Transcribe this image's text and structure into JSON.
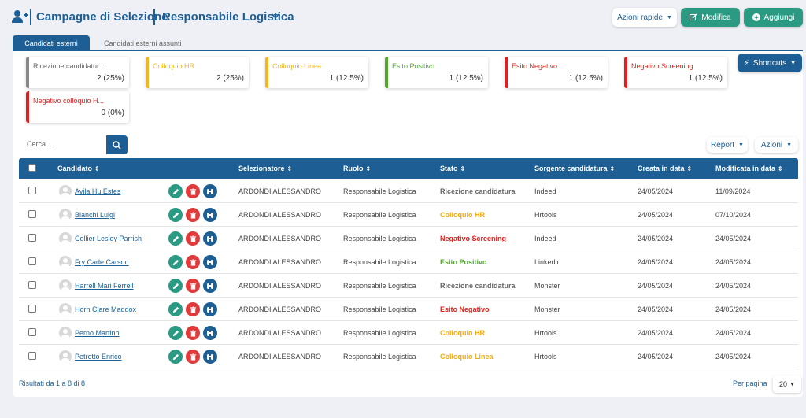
{
  "header": {
    "title": "Campagne di Selezione",
    "subtitle": "Responsabile Logistica",
    "azioni_rapide": "Azioni rapide",
    "modifica": "Modifica",
    "aggiungi": "Aggiungi"
  },
  "tabs": [
    {
      "label": "Candidati esterni",
      "active": true
    },
    {
      "label": "Candidati esterni assunti",
      "active": false
    }
  ],
  "shortcuts": "Shortcuts",
  "cards": [
    {
      "label": "Ricezione candidatur...",
      "value": "2 (25%)",
      "color": "#888888"
    },
    {
      "label": "Colloquio HR",
      "value": "2 (25%)",
      "color": "#f5b521"
    },
    {
      "label": "Colloquio Linea",
      "value": "1 (12.5%)",
      "color": "#f5b521"
    },
    {
      "label": "Esito Positivo",
      "value": "1 (12.5%)",
      "color": "#52a82a"
    },
    {
      "label": "Esito Negativo",
      "value": "1 (12.5%)",
      "color": "#e0201e"
    },
    {
      "label": "Negativo Screening",
      "value": "1 (12.5%)",
      "color": "#e0201e"
    },
    {
      "label": "Negativo colloquio H...",
      "value": "0 (0%)",
      "color": "#e0201e"
    }
  ],
  "search": {
    "placeholder": "Cerca..."
  },
  "toolbar": {
    "report": "Report",
    "azioni": "Azioni"
  },
  "table": {
    "headers": [
      "Candidato",
      "Selezionatore",
      "Ruolo",
      "Stato",
      "Sorgente candidatura",
      "Creata in data",
      "Modificata in data"
    ],
    "rows": [
      {
        "name": "Avila Hu Estes",
        "selezionatore": "ARDONDI ALESSANDRO",
        "ruolo": "Responsabile Logistica",
        "stato": "Ricezione candidatura",
        "stato_color": "#666666",
        "sorgente": "Indeed",
        "creata": "24/05/2024",
        "modificata": "11/09/2024"
      },
      {
        "name": "Bianchi Luigi",
        "selezionatore": "ARDONDI ALESSANDRO",
        "ruolo": "Responsabile Logistica",
        "stato": "Colloquio HR",
        "stato_color": "#f5a913",
        "sorgente": "Hrtools",
        "creata": "24/05/2024",
        "modificata": "07/10/2024"
      },
      {
        "name": "Collier Lesley Parrish",
        "selezionatore": "ARDONDI ALESSANDRO",
        "ruolo": "Responsabile Logistica",
        "stato": "Negativo Screening",
        "stato_color": "#e0201e",
        "sorgente": "Indeed",
        "creata": "24/05/2024",
        "modificata": "24/05/2024"
      },
      {
        "name": "Fry Cade Carson",
        "selezionatore": "ARDONDI ALESSANDRO",
        "ruolo": "Responsabile Logistica",
        "stato": "Esito Positivo",
        "stato_color": "#52a82a",
        "sorgente": "Linkedin",
        "creata": "24/05/2024",
        "modificata": "24/05/2024"
      },
      {
        "name": "Harrell Mari Ferrell",
        "selezionatore": "ARDONDI ALESSANDRO",
        "ruolo": "Responsabile Logistica",
        "stato": "Ricezione candidatura",
        "stato_color": "#666666",
        "sorgente": "Monster",
        "creata": "24/05/2024",
        "modificata": "24/05/2024"
      },
      {
        "name": "Horn Clare Maddox",
        "selezionatore": "ARDONDI ALESSANDRO",
        "ruolo": "Responsabile Logistica",
        "stato": "Esito Negativo",
        "stato_color": "#e0201e",
        "sorgente": "Monster",
        "creata": "24/05/2024",
        "modificata": "24/05/2024"
      },
      {
        "name": "Perno Martino",
        "selezionatore": "ARDONDI ALESSANDRO",
        "ruolo": "Responsabile Logistica",
        "stato": "Colloquio HR",
        "stato_color": "#f5a913",
        "sorgente": "Hrtools",
        "creata": "24/05/2024",
        "modificata": "24/05/2024"
      },
      {
        "name": "Petretto Enrico",
        "selezionatore": "ARDONDI ALESSANDRO",
        "ruolo": "Responsabile Logistica",
        "stato": "Colloquio Linea",
        "stato_color": "#f5a913",
        "sorgente": "Hrtools",
        "creata": "24/05/2024",
        "modificata": "24/05/2024"
      }
    ]
  },
  "footer": {
    "results": "Risultati da 1 a 8 di 8",
    "per_page_label": "Per pagina",
    "per_page_value": "20"
  }
}
